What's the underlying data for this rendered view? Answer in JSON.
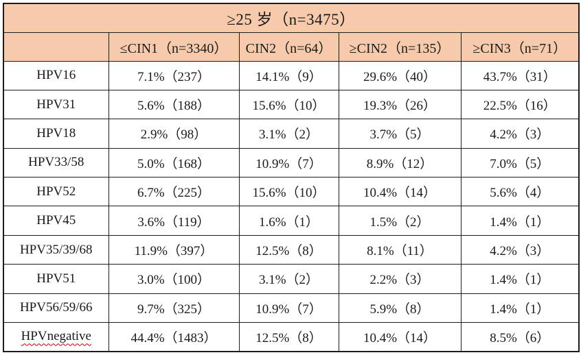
{
  "table": {
    "title": "≥25 岁（n=3475）",
    "corner_label": "",
    "columns": [
      "≤CIN1（n=3340）",
      "CIN2（n=64）",
      "≥CIN2（n=135）",
      "≥CIN3（n=71）"
    ],
    "rows": [
      {
        "label": "HPV16",
        "values": [
          "7.1%（237）",
          "14.1%（9）",
          "29.6%（40）",
          "43.7%（31）"
        ],
        "red_wavy_underline": false
      },
      {
        "label": "HPV31",
        "values": [
          "5.6%（188）",
          "15.6%（10）",
          "19.3%（26）",
          "22.5%（16）"
        ],
        "red_wavy_underline": false
      },
      {
        "label": "HPV18",
        "values": [
          "2.9%（98）",
          "3.1%（2）",
          "3.7%（5）",
          "4.2%（3）"
        ],
        "red_wavy_underline": false
      },
      {
        "label": "HPV33/58",
        "values": [
          "5.0%（168）",
          "10.9%（7）",
          "8.9%（12）",
          "7.0%（5）"
        ],
        "red_wavy_underline": false
      },
      {
        "label": "HPV52",
        "values": [
          "6.7%（225）",
          "15.6%（10）",
          "10.4%（14）",
          "5.6%（4）"
        ],
        "red_wavy_underline": false
      },
      {
        "label": "HPV45",
        "values": [
          "3.6%（119）",
          "1.6%（1）",
          "1.5%（2）",
          "1.4%（1）"
        ],
        "red_wavy_underline": false
      },
      {
        "label": "HPV35/39/68",
        "values": [
          "11.9%（397）",
          "12.5%（8）",
          "8.1%（11）",
          "4.2%（3）"
        ],
        "red_wavy_underline": false
      },
      {
        "label": "HPV51",
        "values": [
          "3.0%（100）",
          "3.1%（2）",
          "2.2%（3）",
          "1.4%（1）"
        ],
        "red_wavy_underline": false
      },
      {
        "label": "HPV56/59/66",
        "values": [
          "9.7%（325）",
          "10.9%（7）",
          "5.9%（8）",
          "1.4%（1）"
        ],
        "red_wavy_underline": false
      },
      {
        "label": "HPVnegative",
        "values": [
          "44.4%（1483）",
          "12.5%（8）",
          "10.4%（14）",
          "8.5%（6）"
        ],
        "red_wavy_underline": true
      }
    ],
    "colors": {
      "header_bg": "#f7caac",
      "body_bg": "#ffffff",
      "border": "#1c1c1c",
      "text": "#1a1a1a",
      "squiggle": "#c00000"
    }
  },
  "chart_data": {
    "type": "table",
    "title": "≥25 岁（n=3475）",
    "columns": [
      "",
      "≤CIN1（n=3340）",
      "CIN2（n=64）",
      "≥CIN2（n=135）",
      "≥CIN3（n=71）"
    ],
    "rows_percent": {
      "HPV16": [
        7.1,
        14.1,
        29.6,
        43.7
      ],
      "HPV31": [
        5.6,
        15.6,
        19.3,
        22.5
      ],
      "HPV18": [
        2.9,
        3.1,
        3.7,
        4.2
      ],
      "HPV33/58": [
        5.0,
        10.9,
        8.9,
        7.0
      ],
      "HPV52": [
        6.7,
        15.6,
        10.4,
        5.6
      ],
      "HPV45": [
        3.6,
        1.6,
        1.5,
        1.4
      ],
      "HPV35/39/68": [
        11.9,
        12.5,
        8.1,
        4.2
      ],
      "HPV51": [
        3.0,
        3.1,
        2.2,
        1.4
      ],
      "HPV56/59/66": [
        9.7,
        10.9,
        5.9,
        1.4
      ],
      "HPVnegative": [
        44.4,
        12.5,
        10.4,
        8.5
      ]
    },
    "rows_count": {
      "HPV16": [
        237,
        9,
        40,
        31
      ],
      "HPV31": [
        188,
        10,
        26,
        16
      ],
      "HPV18": [
        98,
        2,
        5,
        3
      ],
      "HPV33/58": [
        168,
        7,
        12,
        5
      ],
      "HPV52": [
        225,
        10,
        14,
        4
      ],
      "HPV45": [
        119,
        1,
        2,
        1
      ],
      "HPV35/39/68": [
        397,
        8,
        11,
        3
      ],
      "HPV51": [
        100,
        2,
        3,
        1
      ],
      "HPV56/59/66": [
        325,
        7,
        8,
        1
      ],
      "HPVnegative": [
        1483,
        8,
        14,
        6
      ]
    }
  }
}
